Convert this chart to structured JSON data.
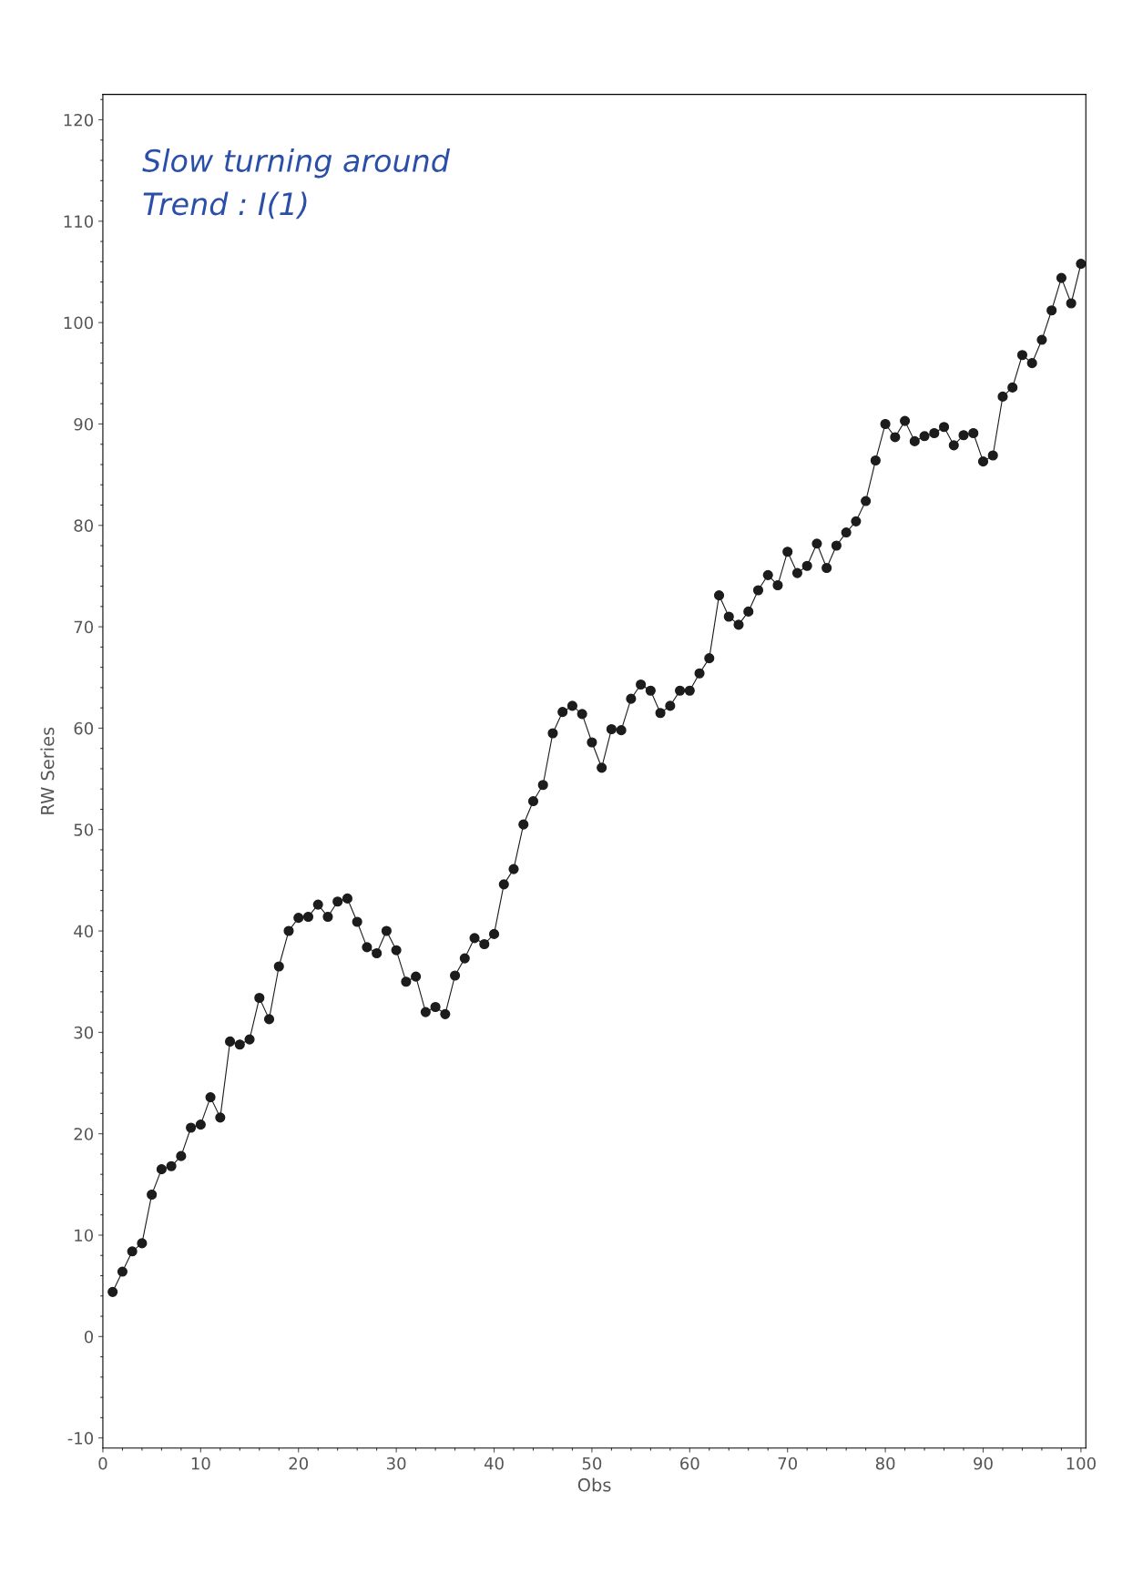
{
  "chart_data": {
    "type": "line",
    "xlabel": "Obs",
    "ylabel": "RW Series",
    "annotations": [
      "Slow turning around\nTrend : I(1)"
    ],
    "x": [
      1,
      2,
      3,
      4,
      5,
      6,
      7,
      8,
      9,
      10,
      11,
      12,
      13,
      14,
      15,
      16,
      17,
      18,
      19,
      20,
      21,
      22,
      23,
      24,
      25,
      26,
      27,
      28,
      29,
      30,
      31,
      32,
      33,
      34,
      35,
      36,
      37,
      38,
      39,
      40,
      41,
      42,
      43,
      44,
      45,
      46,
      47,
      48,
      49,
      50,
      51,
      52,
      53,
      54,
      55,
      56,
      57,
      58,
      59,
      60,
      61,
      62,
      63,
      64,
      65,
      66,
      67,
      68,
      69,
      70,
      71,
      72,
      73,
      74,
      75,
      76,
      77,
      78,
      79,
      80,
      81,
      82,
      83,
      84,
      85,
      86,
      87,
      88,
      89,
      90,
      91,
      92,
      93,
      94,
      95,
      96,
      97,
      98,
      99,
      100
    ],
    "series": [
      {
        "color": "#1c1c1c",
        "values": [
          4.4,
          6.4,
          8.4,
          9.2,
          14.0,
          16.5,
          16.8,
          17.8,
          20.6,
          20.9,
          23.6,
          21.6,
          29.1,
          28.8,
          29.3,
          33.4,
          31.3,
          36.5,
          40.0,
          41.3,
          41.4,
          42.6,
          41.4,
          42.9,
          43.2,
          40.9,
          38.4,
          37.8,
          40.0,
          38.1,
          35.0,
          35.5,
          32.0,
          32.5,
          31.8,
          35.6,
          37.3,
          39.3,
          38.7,
          39.7,
          44.6,
          46.1,
          50.5,
          52.8,
          54.4,
          59.5,
          61.6,
          62.2,
          61.4,
          58.6,
          56.1,
          59.9,
          59.8,
          62.9,
          64.3,
          63.7,
          61.5,
          62.2,
          63.7,
          63.7,
          65.4,
          66.9,
          73.1,
          71.0,
          70.2,
          71.5,
          73.6,
          75.1,
          74.1,
          77.4,
          75.3,
          76.0,
          78.2,
          75.8,
          78.0,
          79.3,
          80.4,
          82.4,
          86.4,
          90.0,
          88.7,
          90.3,
          88.3,
          88.8,
          89.1,
          89.7,
          87.9,
          88.9,
          89.1,
          86.3,
          86.9,
          92.7,
          93.6,
          96.8,
          96.0,
          98.3,
          101.2,
          104.4,
          101.9,
          105.8
        ]
      }
    ],
    "xlim": [
      0,
      100.5
    ],
    "xticks": [
      0,
      10,
      20,
      30,
      40,
      50,
      60,
      70,
      80,
      90,
      100
    ],
    "ylim": [
      -11,
      122.5
    ],
    "yticks": [
      -10,
      0,
      10,
      20,
      30,
      40,
      50,
      60,
      70,
      80,
      90,
      100,
      110,
      120
    ],
    "grid": false,
    "marker": "circle",
    "line_style": "solid"
  }
}
